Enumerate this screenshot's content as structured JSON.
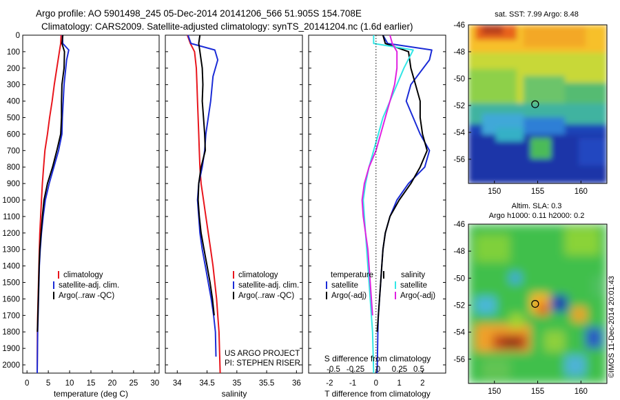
{
  "header": {
    "line1": "Argo profile: AO 5901498_245 05-Dec-2014 20141206_566 51.905S 154.708E",
    "line2": "Climatology: CARS2009. Satellite-adjusted climatology: synTS_20141204.nc (1.6d earlier)"
  },
  "credits": {
    "project": "US ARGO PROJECT",
    "pi": "PI: STEPHEN RISER",
    "imos": "©IMOS 11-Dec-2014 20:01:43"
  },
  "colors": {
    "climatology": "#e8141b",
    "satellite": "#1a2bd6",
    "argo": "#000000",
    "satellite_s": "#33e6e6",
    "argo_s": "#e020e0"
  },
  "chart_data": [
    {
      "type": "line",
      "xlabel": "temperature (deg C)",
      "ylabel": "",
      "xlim": [
        -1,
        31
      ],
      "ylim": [
        2050,
        0
      ],
      "xticks": [
        0,
        5,
        10,
        15,
        20,
        25,
        30
      ],
      "yticks": [
        0,
        100,
        200,
        300,
        400,
        500,
        600,
        700,
        800,
        900,
        1000,
        1100,
        1200,
        1300,
        1400,
        1500,
        1600,
        1700,
        1800,
        1900,
        2000
      ],
      "legend": [
        "climatology",
        "satellite-adj. clim.",
        "Argo(..raw -QC)"
      ],
      "series": [
        {
          "name": "climatology",
          "color": "#e8141b",
          "x": [
            8.0,
            7.9,
            7.6,
            7.0,
            6.4,
            5.9,
            5.3,
            4.8,
            4.2,
            3.9,
            3.6,
            3.4,
            3.2,
            3.0,
            2.9,
            2.8,
            2.7,
            2.6,
            2.5,
            2.45,
            2.4
          ],
          "y": [
            0,
            50,
            100,
            200,
            300,
            400,
            500,
            600,
            700,
            800,
            900,
            1000,
            1100,
            1200,
            1300,
            1400,
            1500,
            1600,
            1700,
            1800,
            2050
          ]
        },
        {
          "name": "satellite-adj. clim.",
          "color": "#1a2bd6",
          "x": [
            8.3,
            8.4,
            9.8,
            9.3,
            8.7,
            8.5,
            8.3,
            8.2,
            7.4,
            6.3,
            5.2,
            4.3,
            3.8,
            3.4,
            3.1,
            2.9,
            2.8,
            2.7,
            2.6,
            2.5,
            2.4
          ],
          "y": [
            0,
            50,
            90,
            150,
            300,
            400,
            500,
            600,
            700,
            800,
            900,
            1000,
            1100,
            1200,
            1300,
            1400,
            1500,
            1600,
            1700,
            1800,
            2050
          ]
        },
        {
          "name": "Argo(..raw -QC)",
          "color": "#000000",
          "x": [
            8.4,
            8.2,
            8.8,
            8.7,
            8.2,
            8.1,
            8.1,
            7.9,
            7.0,
            6.0,
            4.8,
            4.0,
            3.6,
            3.3,
            3.0,
            2.85,
            2.75,
            2.65,
            2.55,
            2.45
          ],
          "y": [
            0,
            50,
            100,
            200,
            300,
            400,
            500,
            600,
            700,
            800,
            900,
            1000,
            1100,
            1200,
            1300,
            1400,
            1500,
            1600,
            1700,
            1800
          ]
        }
      ]
    },
    {
      "type": "line",
      "xlabel": "salinity",
      "ylabel": "",
      "xlim": [
        33.8,
        36.1
      ],
      "ylim": [
        2050,
        0
      ],
      "xticks": [
        34,
        34.5,
        35,
        35.5,
        36
      ],
      "xticklabels": [
        "34",
        "34.5",
        "35",
        "35.5",
        "36"
      ],
      "legend": [
        "climatology",
        "satellite-adj. clim.",
        "Argo(..raw -QC)"
      ],
      "series": [
        {
          "name": "climatology",
          "color": "#e8141b",
          "x": [
            34.17,
            34.22,
            34.29,
            34.32,
            34.33,
            34.34,
            34.35,
            34.36,
            34.37,
            34.38,
            34.4,
            34.44,
            34.48,
            34.52,
            34.56,
            34.6,
            34.63,
            34.66,
            34.68,
            34.7,
            34.72
          ],
          "y": [
            0,
            50,
            100,
            200,
            300,
            400,
            500,
            600,
            700,
            800,
            900,
            1000,
            1100,
            1200,
            1300,
            1400,
            1500,
            1600,
            1700,
            1800,
            2050
          ]
        },
        {
          "name": "satellite-adj. clim.",
          "color": "#1a2bd6",
          "x": [
            34.18,
            34.23,
            34.63,
            34.68,
            34.6,
            34.56,
            34.52,
            34.48,
            34.46,
            34.42,
            34.36,
            34.34,
            34.36,
            34.38,
            34.42,
            34.47,
            34.52,
            34.57,
            34.61,
            34.64,
            34.65
          ],
          "y": [
            0,
            50,
            90,
            150,
            250,
            400,
            500,
            600,
            700,
            800,
            900,
            1000,
            1100,
            1200,
            1300,
            1400,
            1500,
            1600,
            1700,
            1800,
            1950
          ]
        },
        {
          "name": "Argo(..raw -QC)",
          "color": "#000000",
          "x": [
            34.38,
            34.36,
            34.38,
            34.42,
            34.43,
            34.42,
            34.44,
            34.46,
            34.47,
            34.4,
            34.36,
            34.35,
            34.37,
            34.4,
            34.45,
            34.5,
            34.55,
            34.59,
            34.62
          ],
          "y": [
            0,
            50,
            100,
            200,
            300,
            400,
            500,
            600,
            700,
            800,
            900,
            1000,
            1100,
            1200,
            1300,
            1400,
            1500,
            1600,
            1700
          ]
        }
      ]
    },
    {
      "type": "line",
      "xlabel": "T difference from climatology",
      "xlabel_top": "S difference from climatology",
      "xlim": [
        -2.9,
        3.0
      ],
      "ylim": [
        2050,
        0
      ],
      "xticks": [
        -2,
        -1,
        0,
        1,
        2
      ],
      "s_ticks": [
        "-0.5",
        "-0.25",
        "0",
        "0.25",
        "0.5"
      ],
      "legend_t": {
        "title": "temperature",
        "items": [
          "satellite",
          "Argo(-adj)"
        ]
      },
      "legend_s": {
        "title": "salinity",
        "items": [
          "satellite",
          "Argo(-adj)"
        ]
      },
      "series": [
        {
          "name": "satellite",
          "color": "#1a2bd6",
          "x": [
            0.3,
            0.5,
            2.4,
            2.3,
            1.5,
            1.3,
            1.6,
            1.9,
            2.3,
            2.1,
            1.4,
            0.9,
            0.6,
            0.4,
            0.3,
            0.25,
            0.2,
            0.15,
            0.1,
            0.08,
            0.05
          ],
          "y": [
            0,
            50,
            90,
            150,
            300,
            400,
            500,
            600,
            700,
            800,
            900,
            1000,
            1100,
            1200,
            1300,
            1400,
            1500,
            1600,
            1700,
            1800,
            2050
          ]
        },
        {
          "name": "Argo(-adj)",
          "color": "#000000",
          "x": [
            0.3,
            0.4,
            1.4,
            1.5,
            1.7,
            1.9,
            1.9,
            2.0,
            2.2,
            1.9,
            1.5,
            1.0,
            0.6,
            0.4,
            0.3,
            0.25,
            0.2,
            0.15,
            0.1,
            0.05
          ],
          "y": [
            0,
            50,
            100,
            200,
            300,
            400,
            500,
            600,
            700,
            800,
            900,
            1000,
            1100,
            1200,
            1300,
            1400,
            1500,
            1600,
            1700,
            1800
          ]
        },
        {
          "name": "satellite",
          "color": "#33e6e6",
          "x": [
            -0.1,
            -0.1,
            1.6,
            1.2,
            0.9,
            0.6,
            0.3,
            0.1,
            -0.1,
            -0.3,
            -0.45,
            -0.55,
            -0.5,
            -0.45,
            -0.4,
            -0.35,
            -0.3,
            -0.25,
            -0.2,
            -0.15,
            -0.1
          ],
          "y": [
            0,
            50,
            90,
            200,
            300,
            400,
            500,
            600,
            700,
            800,
            900,
            1000,
            1100,
            1200,
            1300,
            1400,
            1500,
            1600,
            1700,
            1800,
            2050
          ]
        },
        {
          "name": "Argo(-adj)",
          "color": "#e020e0",
          "x": [
            0.6,
            0.7,
            0.9,
            0.9,
            0.8,
            0.6,
            0.4,
            0.2,
            0.0,
            -0.3,
            -0.5,
            -0.6,
            -0.55,
            -0.45,
            -0.35,
            -0.3,
            -0.25,
            -0.2,
            -0.15
          ],
          "y": [
            0,
            50,
            100,
            200,
            300,
            400,
            500,
            600,
            700,
            800,
            900,
            1000,
            1100,
            1200,
            1300,
            1400,
            1500,
            1600,
            1700
          ]
        }
      ]
    },
    {
      "type": "heatmap",
      "title": "sat. SST: 7.99 Argo: 8.48",
      "xlim": [
        147,
        163
      ],
      "ylim": [
        -57.8,
        -46
      ],
      "xticks": [
        150,
        155,
        160
      ],
      "yticks": [
        -46,
        -48,
        -50,
        -52,
        -54,
        -56
      ],
      "marker": {
        "lon": 154.708,
        "lat": -51.905
      }
    },
    {
      "type": "heatmap",
      "title": "Altim. SLA: 0.3",
      "subtitle": "Argo h1000: 0.11 h2000: 0.2",
      "xlim": [
        147,
        163
      ],
      "ylim": [
        -57.8,
        -46
      ],
      "xticks": [
        150,
        155,
        160
      ],
      "yticks": [
        -46,
        -48,
        -50,
        -52,
        -54,
        -56
      ],
      "marker": {
        "lon": 154.708,
        "lat": -51.905
      }
    }
  ]
}
